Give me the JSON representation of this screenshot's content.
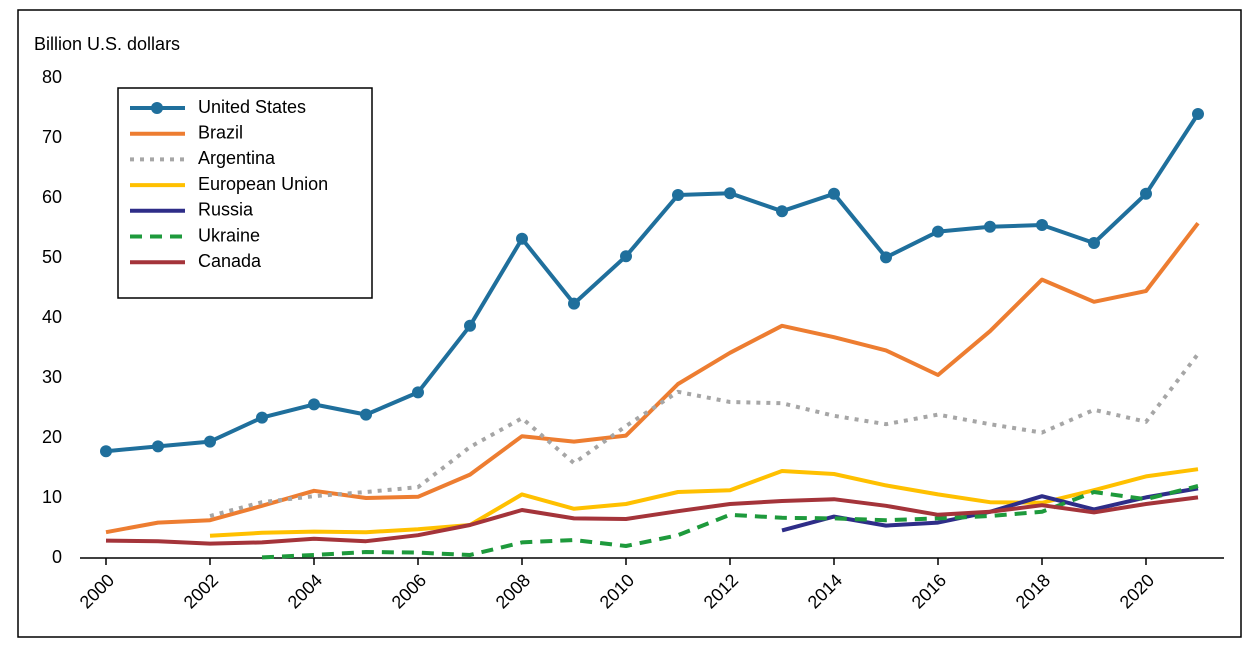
{
  "chart_data": {
    "type": "line",
    "ylabel": "Billion U.S. dollars",
    "x": [
      2000,
      2001,
      2002,
      2003,
      2004,
      2005,
      2006,
      2007,
      2008,
      2009,
      2010,
      2011,
      2012,
      2013,
      2014,
      2015,
      2016,
      2017,
      2018,
      2019,
      2020,
      2021
    ],
    "xlim": [
      1999.5,
      2021.5
    ],
    "xticks": [
      2000,
      2002,
      2004,
      2006,
      2008,
      2010,
      2012,
      2014,
      2016,
      2018,
      2020
    ],
    "ylim": [
      0,
      80
    ],
    "yticks": [
      0,
      10,
      20,
      30,
      40,
      50,
      60,
      70,
      80
    ],
    "grid": false,
    "legend": "upper left",
    "series": [
      {
        "name": "United States",
        "color": "#1f6f9c",
        "style": "solid",
        "marker": true,
        "values": [
          17.8,
          18.6,
          19.4,
          23.4,
          25.6,
          23.9,
          27.6,
          38.7,
          53.2,
          42.4,
          50.3,
          60.5,
          60.8,
          57.8,
          60.7,
          50.1,
          54.4,
          55.2,
          55.5,
          52.5,
          60.7,
          74.0
        ]
      },
      {
        "name": "Brazil",
        "color": "#ed7d31",
        "style": "solid",
        "marker": false,
        "values": [
          4.3,
          5.9,
          6.3,
          8.7,
          11.2,
          10.0,
          10.2,
          13.9,
          20.3,
          19.4,
          20.4,
          29.0,
          34.2,
          38.7,
          36.8,
          34.6,
          30.5,
          37.8,
          46.4,
          42.7,
          44.5,
          55.8
        ]
      },
      {
        "name": "Argentina",
        "color": "#a6a6a6",
        "style": "dotted",
        "marker": false,
        "values": [
          null,
          null,
          7.0,
          9.3,
          10.3,
          11.0,
          11.8,
          18.5,
          23.3,
          15.8,
          22.0,
          27.7,
          26.0,
          25.8,
          23.7,
          22.3,
          23.9,
          22.3,
          20.9,
          24.7,
          22.7,
          34.0
        ]
      },
      {
        "name": "European Union",
        "color": "#ffc000",
        "style": "solid",
        "marker": false,
        "values": [
          null,
          null,
          3.7,
          4.2,
          4.4,
          4.3,
          4.8,
          5.5,
          10.6,
          8.2,
          9.0,
          11.0,
          11.3,
          14.5,
          14.0,
          12.1,
          10.6,
          9.3,
          9.2,
          11.3,
          13.6,
          14.8
        ]
      },
      {
        "name": "Russia",
        "color": "#2e2d88",
        "style": "solid",
        "marker": false,
        "values": [
          null,
          null,
          null,
          null,
          null,
          null,
          null,
          null,
          null,
          null,
          null,
          null,
          null,
          4.6,
          6.9,
          5.4,
          5.9,
          7.7,
          10.3,
          8.1,
          10.1,
          11.6
        ]
      },
      {
        "name": "Ukraine",
        "color": "#1e9a3c",
        "style": "dashed",
        "marker": false,
        "values": [
          null,
          null,
          null,
          0.1,
          0.5,
          1.0,
          0.9,
          0.5,
          2.6,
          3.0,
          2.0,
          3.8,
          7.2,
          6.7,
          6.6,
          6.3,
          6.6,
          7.0,
          7.7,
          11.0,
          9.8,
          12.0
        ]
      },
      {
        "name": "Canada",
        "color": "#a4343a",
        "style": "solid",
        "marker": false,
        "values": [
          2.9,
          2.8,
          2.4,
          2.6,
          3.2,
          2.8,
          3.8,
          5.5,
          8.0,
          6.6,
          6.5,
          7.8,
          9.0,
          9.5,
          9.8,
          8.7,
          7.2,
          7.7,
          8.8,
          7.6,
          9.0,
          10.1
        ]
      }
    ]
  }
}
